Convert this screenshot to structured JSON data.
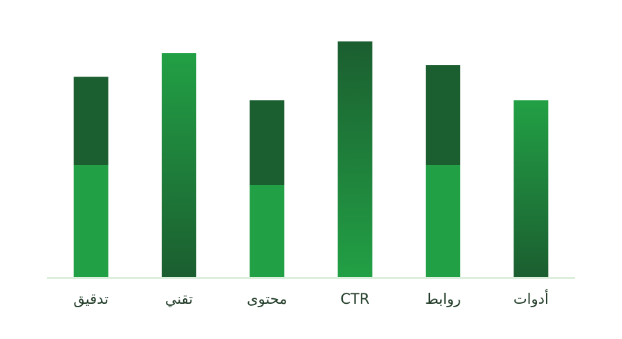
{
  "chart_data": {
    "type": "bar",
    "categories": [
      "تدقيق",
      "تقني",
      "محتوى",
      "CTR",
      "روابط",
      "أدوات"
    ],
    "series": [
      {
        "color": "#22a045",
        "values": [
          47.5,
          null,
          39,
          null,
          47.5,
          null
        ]
      },
      {
        "color": "#1b5e30",
        "values": [
          37.5,
          null,
          36,
          null,
          42.5,
          null
        ]
      },
      {
        "values": [
          null,
          95,
          null,
          100,
          null,
          75
        ],
        "gradients": [
          null,
          [
            "#22a045",
            "#1b5e30"
          ],
          null,
          [
            "#1b5e30",
            "#22a045"
          ],
          null,
          [
            "#22a045",
            "#1b5e30"
          ]
        ]
      }
    ],
    "ylim": [
      0,
      100
    ],
    "baseline_color": "#dcefdc"
  }
}
